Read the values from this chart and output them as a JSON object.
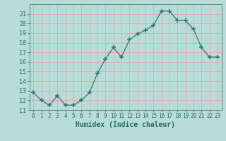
{
  "x": [
    0,
    1,
    2,
    3,
    4,
    5,
    6,
    7,
    8,
    9,
    10,
    11,
    12,
    13,
    14,
    15,
    16,
    17,
    18,
    19,
    20,
    21,
    22,
    23
  ],
  "y": [
    12.8,
    12.0,
    11.5,
    12.5,
    11.5,
    11.5,
    12.0,
    12.8,
    14.8,
    16.3,
    17.5,
    16.5,
    18.3,
    18.9,
    19.3,
    19.8,
    21.3,
    21.3,
    20.3,
    20.3,
    19.4,
    17.5,
    16.5,
    16.5
  ],
  "line_color": "#2a7a6e",
  "marker": "+",
  "marker_size": 4,
  "marker_color": "#2a7a6e",
  "bg_color": "#b8ddd8",
  "grid_color": "#d8eeea",
  "xlabel": "Humidex (Indice chaleur)",
  "xlim": [
    -0.5,
    23.5
  ],
  "ylim": [
    11,
    22
  ],
  "yticks": [
    11,
    12,
    13,
    14,
    15,
    16,
    17,
    18,
    19,
    20,
    21
  ],
  "xticks": [
    0,
    1,
    2,
    3,
    4,
    5,
    6,
    7,
    8,
    9,
    10,
    11,
    12,
    13,
    14,
    15,
    16,
    17,
    18,
    19,
    20,
    21,
    22,
    23
  ],
  "tick_color": "#2a6a60",
  "label_color": "#2a6a60"
}
